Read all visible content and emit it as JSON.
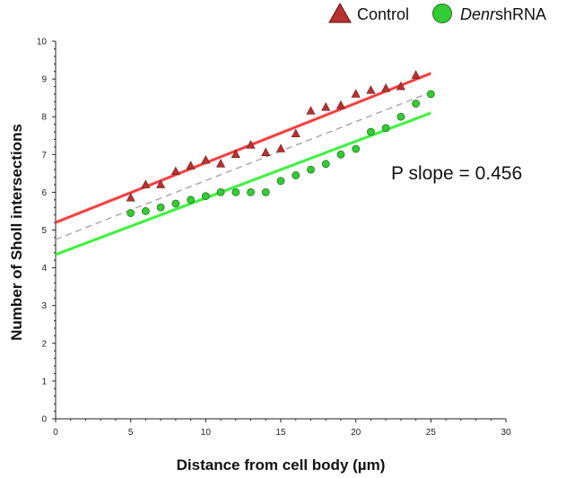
{
  "chart_data": {
    "type": "scatter",
    "xlabel": "Distance from cell body (µm)",
    "ylabel": "Number of Sholl intersections",
    "xlim": [
      0,
      30
    ],
    "ylim": [
      0,
      10
    ],
    "xticks": [
      "0",
      "5",
      "10",
      "15",
      "20",
      "25",
      "30"
    ],
    "yticks": [
      "0",
      "1",
      "2",
      "3",
      "4",
      "5",
      "6",
      "7",
      "8",
      "9",
      "10"
    ],
    "annotation": "P slope = 0.456",
    "legend_position": "top-right",
    "series": [
      {
        "name": "Control",
        "marker": "triangle",
        "color": "#c0392b",
        "x": [
          5,
          6,
          7,
          8,
          9,
          10,
          11,
          12,
          13,
          14,
          15,
          16,
          17,
          18,
          19,
          20,
          21,
          22,
          23,
          24
        ],
        "y": [
          5.85,
          6.2,
          6.2,
          6.55,
          6.7,
          6.85,
          6.75,
          7.0,
          7.25,
          7.05,
          7.15,
          7.55,
          8.15,
          8.25,
          8.3,
          8.6,
          8.7,
          8.75,
          8.8,
          9.1
        ],
        "fit": {
          "x": [
            0,
            25
          ],
          "y": [
            5.2,
            9.15
          ],
          "color": "#ee3333"
        }
      },
      {
        "name": "Denr shRNA",
        "name_italic": "Denr",
        "name_rest": "shRNA",
        "marker": "circle",
        "color": "#33cc33",
        "x": [
          5,
          6,
          7,
          8,
          9,
          10,
          11,
          12,
          13,
          14,
          15,
          16,
          17,
          18,
          19,
          20,
          21,
          22,
          23,
          24,
          25
        ],
        "y": [
          5.45,
          5.5,
          5.6,
          5.7,
          5.8,
          5.9,
          6.0,
          6.0,
          6.0,
          6.0,
          6.3,
          6.45,
          6.6,
          6.75,
          7.0,
          7.15,
          7.6,
          7.7,
          8.0,
          8.35,
          8.6
        ],
        "fit": {
          "x": [
            0,
            25
          ],
          "y": [
            4.35,
            8.1
          ],
          "color": "#33ee33"
        }
      }
    ],
    "pooled_fit": {
      "x": [
        0,
        25
      ],
      "y": [
        4.75,
        8.65
      ],
      "color": "#aaaaaa",
      "style": "dashed"
    }
  }
}
